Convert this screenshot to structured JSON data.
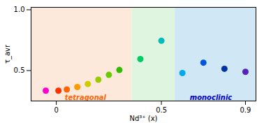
{
  "chart_data": {
    "type": "scatter",
    "x": [
      -0.05,
      0.01,
      0.05,
      0.1,
      0.15,
      0.2,
      0.25,
      0.3,
      0.4,
      0.5,
      0.6,
      0.7,
      0.8,
      0.9
    ],
    "values": [
      0.335,
      0.335,
      0.345,
      0.365,
      0.39,
      0.425,
      0.465,
      0.505,
      0.595,
      0.745,
      0.48,
      0.565,
      0.515,
      0.49
    ],
    "colors": [
      "#ff00cc",
      "#ff3300",
      "#ff6600",
      "#ff9900",
      "#cccc00",
      "#99cc00",
      "#66cc00",
      "#33bb00",
      "#00cc66",
      "#00bbbb",
      "#00aaee",
      "#0055dd",
      "#0033aa",
      "#5522bb"
    ],
    "xlabel": "Nd³⁺ (x)",
    "ylabel": "τ_avr",
    "xlim": [
      -0.12,
      0.95
    ],
    "ylim": [
      0.25,
      1.02
    ],
    "xticks": [
      0,
      0.5,
      0.9
    ],
    "yticks": [
      0.5,
      {
        "value": 1.0,
        "label": "1.0"
      }
    ],
    "grid": false,
    "regions": [
      {
        "x1": -0.12,
        "x2": 0.36,
        "color": "#fde8dc"
      },
      {
        "x1": 0.36,
        "x2": 0.565,
        "color": "#e0f5e0"
      },
      {
        "x1": 0.565,
        "x2": 0.95,
        "color": "#d0e8f5"
      }
    ],
    "annotations": [
      {
        "x": 0.04,
        "y": 0.275,
        "text": "tetragonal",
        "color": "#ff6600"
      },
      {
        "x": 0.635,
        "y": 0.275,
        "text": "monoclinic",
        "color": "#0000cc"
      }
    ]
  }
}
